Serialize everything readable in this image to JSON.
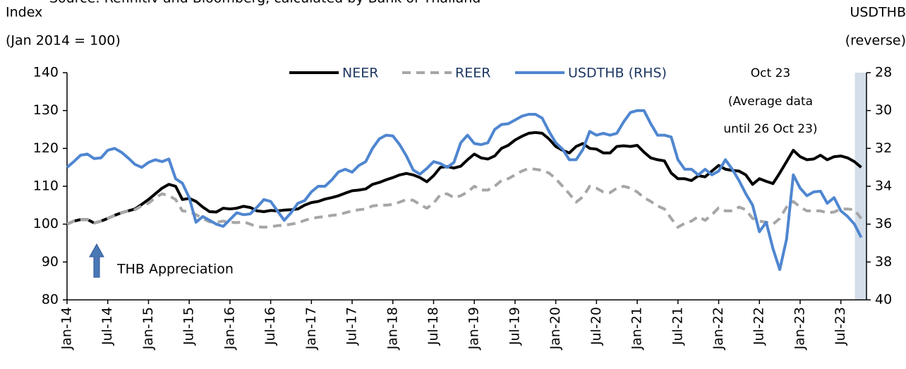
{
  "chart_data": {
    "type": "line",
    "source": "Source: Refinitiv and Bloomberg, calculated by Bank of Thailand",
    "y_label": [
      "Index",
      "(Jan 2014 = 100)"
    ],
    "y2_label": [
      "USDTHB",
      "(reverse)"
    ],
    "annotations": [
      "Oct 23",
      "(Average data",
      "until 26 Oct 23)",
      "THB Appreciation"
    ],
    "highlight_color": "#d3deea",
    "arrow_color": "#4a78b5",
    "categories": [
      "Jan-14",
      null,
      null,
      null,
      null,
      null,
      "Jul-14",
      null,
      null,
      null,
      null,
      null,
      "Jan-15",
      null,
      null,
      null,
      null,
      null,
      "Jul-15",
      null,
      null,
      null,
      null,
      null,
      "Jan-16",
      null,
      null,
      null,
      null,
      null,
      "Jul-16",
      null,
      null,
      null,
      null,
      null,
      "Jan-17",
      null,
      null,
      null,
      null,
      null,
      "Jul-17",
      null,
      null,
      null,
      null,
      null,
      "Jan-18",
      null,
      null,
      null,
      null,
      null,
      "Jul-18",
      null,
      null,
      null,
      null,
      null,
      "Jan-19",
      null,
      null,
      null,
      null,
      null,
      "Jul-19",
      null,
      null,
      null,
      null,
      null,
      "Jan-20",
      null,
      null,
      null,
      null,
      null,
      "Jul-20",
      null,
      null,
      null,
      null,
      null,
      "Jan-21",
      null,
      null,
      null,
      null,
      null,
      "Jul-21",
      null,
      null,
      null,
      null,
      null,
      "Jan-22",
      null,
      null,
      null,
      null,
      null,
      "Jul-22",
      null,
      null,
      null,
      null,
      null,
      "Jan-23",
      null,
      null,
      null,
      null,
      null,
      "Jul-23",
      null,
      null,
      null
    ],
    "series": [
      {
        "name": "NEER",
        "color": "#000000",
        "dash": false,
        "values": [
          100,
          100.8,
          101.2,
          101.2,
          100.3,
          100.8,
          101.5,
          102.3,
          103,
          103.5,
          104,
          105.2,
          106.5,
          108,
          109.5,
          110.5,
          110,
          106.5,
          106.8,
          106,
          104.5,
          103.3,
          103.2,
          104.2,
          104,
          104.2,
          104.7,
          104.4,
          103.5,
          103.3,
          103.6,
          103.5,
          103.7,
          103.8,
          104,
          105,
          105.7,
          106,
          106.6,
          107,
          107.5,
          108.2,
          108.8,
          109,
          109.3,
          110.5,
          111,
          111.7,
          112.3,
          113,
          113.4,
          113,
          112.3,
          111.2,
          112.8,
          115,
          115.2,
          114.8,
          115.3,
          117,
          118.5,
          117.5,
          117.2,
          118,
          120,
          120.8,
          122.2,
          123.2,
          124,
          124.2,
          124,
          122.5,
          120.5,
          119.5,
          118.8,
          120.5,
          121.3,
          120,
          119.8,
          118.8,
          118.8,
          120.5,
          120.7,
          120.5,
          120.8,
          119,
          117.5,
          117,
          116.7,
          113.5,
          112,
          112,
          111.5,
          112.8,
          112.5,
          114,
          115.5,
          114.5,
          114.2,
          114,
          113,
          110.5,
          112,
          111.3,
          110.7,
          113.5,
          116.5,
          119.5,
          117.8,
          117,
          117.2,
          118.2,
          117,
          117.8,
          118,
          117.5,
          116.5,
          115
        ]
      },
      {
        "name": "REER",
        "color": "#a6a6a6",
        "dash": true,
        "values": [
          100,
          100.8,
          101.2,
          101.2,
          100.3,
          100.8,
          101.5,
          102.3,
          103,
          103.5,
          103.8,
          104.8,
          105.5,
          107,
          108,
          107.5,
          106.5,
          103.5,
          103.3,
          102.5,
          101.5,
          100.6,
          100.5,
          100.8,
          100.5,
          100.4,
          100.6,
          100,
          99.3,
          99.2,
          99.3,
          99.6,
          99.7,
          100,
          100.3,
          101,
          101.5,
          101.8,
          102,
          102.3,
          102.5,
          103,
          103.5,
          103.8,
          104,
          104.8,
          105,
          105,
          105.2,
          105.8,
          106.5,
          106.3,
          105.2,
          104.2,
          105.5,
          107.8,
          108,
          107,
          107.5,
          108.5,
          110,
          109,
          109,
          110,
          111.5,
          112,
          113,
          114,
          114.7,
          114.5,
          114.2,
          113.5,
          112,
          110,
          108,
          105.8,
          107.2,
          110,
          109.5,
          108.5,
          108.3,
          109.5,
          110,
          109.5,
          108.5,
          107,
          106,
          104.8,
          104,
          101.5,
          99.2,
          100.2,
          100.8,
          102,
          101,
          102.5,
          104.3,
          103.5,
          103.5,
          104.5,
          103.8,
          101.5,
          100.8,
          100.5,
          100,
          101.5,
          104.5,
          106,
          104.5,
          103.5,
          103.5,
          103.5,
          103,
          103.2,
          104,
          104,
          103.8,
          101.5
        ]
      },
      {
        "name": "USDTHB (RHS)",
        "color": "#4f86d0",
        "dash": false,
        "axis": "y2",
        "values": [
          33.0,
          32.7,
          32.36,
          32.3,
          32.54,
          32.5,
          32.1,
          32.0,
          32.2,
          32.5,
          32.84,
          33.0,
          32.74,
          32.6,
          32.7,
          32.56,
          33.6,
          33.84,
          34.6,
          35.9,
          35.6,
          35.8,
          36.0,
          36.12,
          35.76,
          35.4,
          35.5,
          35.46,
          35.1,
          34.7,
          34.8,
          35.3,
          35.8,
          35.4,
          34.9,
          34.76,
          34.3,
          34.0,
          34.0,
          33.66,
          33.24,
          33.1,
          33.26,
          32.9,
          32.7,
          32.0,
          31.5,
          31.3,
          31.34,
          31.8,
          32.4,
          33.14,
          33.36,
          33.06,
          32.7,
          32.8,
          33.0,
          32.74,
          31.7,
          31.3,
          31.74,
          31.8,
          31.7,
          31.0,
          30.74,
          30.7,
          30.5,
          30.3,
          30.2,
          30.2,
          30.4,
          31.1,
          31.7,
          32.04,
          32.6,
          32.6,
          32.06,
          31.1,
          31.3,
          31.2,
          31.3,
          31.2,
          30.6,
          30.1,
          30.0,
          30.0,
          30.7,
          31.3,
          31.3,
          31.4,
          32.6,
          33.1,
          33.1,
          33.4,
          33.1,
          33.4,
          33.2,
          32.6,
          33.1,
          33.7,
          34.4,
          35.0,
          36.4,
          35.9,
          37.3,
          38.4,
          36.8,
          33.4,
          34.1,
          34.5,
          34.3,
          34.26,
          34.9,
          34.6,
          35.3,
          35.6,
          36.0,
          36.7
        ]
      }
    ],
    "ylim": [
      80,
      140
    ],
    "yticks": [
      80,
      90,
      100,
      110,
      120,
      130,
      140
    ],
    "y2lim": [
      28,
      40
    ],
    "y2ticks": [
      28,
      30,
      32,
      34,
      36,
      38,
      40
    ],
    "y2_reverse": true
  }
}
